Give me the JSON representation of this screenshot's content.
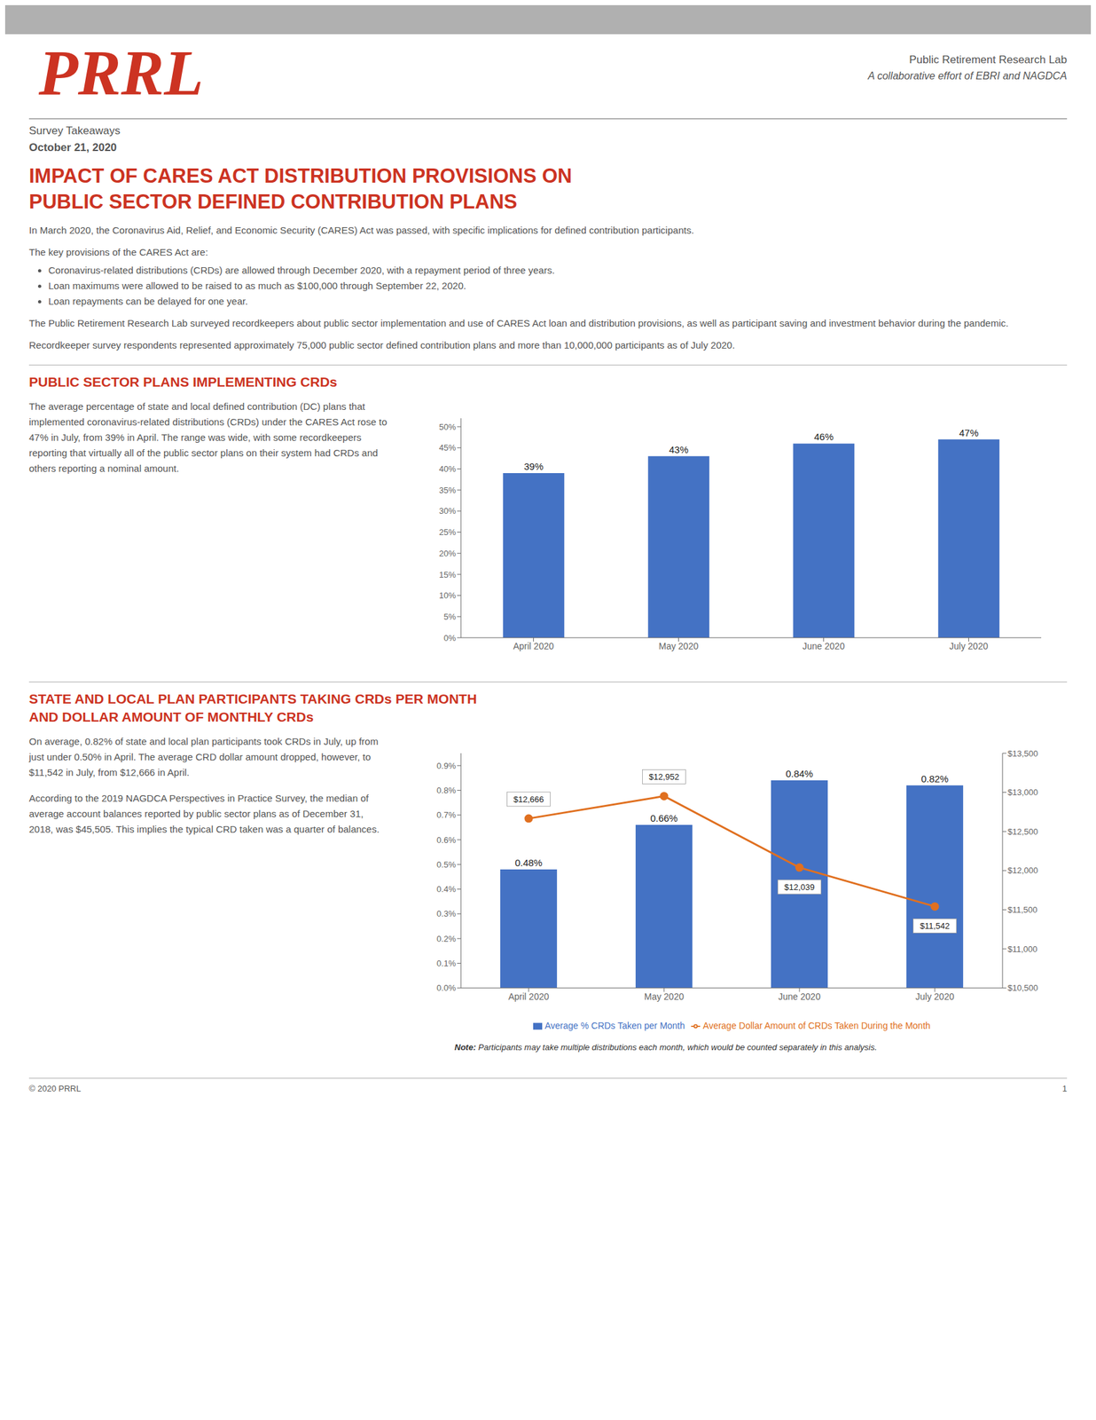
{
  "page": {
    "colors": {
      "top_bar": "#b0b0b0",
      "logo": "#cc3322",
      "title": "#cc3322",
      "section_title": "#cc3322",
      "body": "#555555"
    },
    "logo": "PRRL",
    "header_right": [
      "Public Retirement Research Lab",
      "A collaborative effort of EBRI and NAGDCA"
    ],
    "survey_label": "Survey Takeaways",
    "date_label": "October 21, 2020",
    "title": [
      "IMPACT OF CARES ACT DISTRIBUTION PROVISIONS ON",
      "PUBLIC SECTOR DEFINED CONTRIBUTION PLANS"
    ],
    "para1": "In March 2020, the Coronavirus Aid, Relief, and Economic Security (CARES) Act was passed, with specific implications for defined contribution participants.",
    "para2_intro": "The key provisions of the CARES Act are:",
    "bullets": [
      "Coronavirus-related distributions (CRDs) are allowed through December 2020, with a repayment period of three years.",
      "Loan maximums were allowed to be raised to as much as $100,000 through September 22, 2020.",
      "Loan repayments can be delayed for one year."
    ],
    "para3": "The Public Retirement Research Lab surveyed recordkeepers about public sector implementation and use of CARES Act loan and distribution provisions, as well as participant saving and investment behavior during the pandemic.",
    "para4": "Recordkeeper survey respondents represented approximately 75,000 public sector defined contribution plans and more than 10,000,000 participants as of July 2020.",
    "footer_text": "© 2020 PRRL",
    "footer_page": "1"
  },
  "chart_data": [
    {
      "type": "bar",
      "title": [
        "PUBLIC SECTOR PLANS IMPLEMENTING CRDs"
      ],
      "annotations": [
        "The average percentage of state and local defined contribution (DC) plans that implemented coronavirus-related distributions (CRDs) under the CARES Act rose to 47% in July, from 39% in April. The range was wide, with some recordkeepers reporting that virtually all of the public sector plans on their system had CRDs and others reporting a nominal amount."
      ],
      "categories": [
        "April 2020",
        "May 2020",
        "June 2020",
        "July 2020"
      ],
      "values": [
        39,
        43,
        46,
        47
      ],
      "value_labels": [
        "39%",
        "43%",
        "46%",
        "47%"
      ],
      "color": "#4472c4",
      "data_labels": true,
      "grid": false,
      "ylim": [
        0,
        52
      ],
      "yticks": [
        {
          "value": 0,
          "label": "0%"
        },
        {
          "value": 5,
          "label": "5%"
        },
        {
          "value": 10,
          "label": "10%"
        },
        {
          "value": 15,
          "label": "15%"
        },
        {
          "value": 20,
          "label": "20%"
        },
        {
          "value": 25,
          "label": "25%"
        },
        {
          "value": 30,
          "label": "30%"
        },
        {
          "value": 35,
          "label": "35%"
        },
        {
          "value": 40,
          "label": "40%"
        },
        {
          "value": 45,
          "label": "45%"
        },
        {
          "value": 50,
          "label": "50%"
        }
      ]
    },
    {
      "type": "bar",
      "title": [
        "STATE AND LOCAL PLAN PARTICIPANTS TAKING CRDs PER MONTH",
        "AND DOLLAR AMOUNT OF MONTHLY CRDs"
      ],
      "annotations": [
        "On average, 0.82% of state and local plan participants took CRDs in July, up from just under 0.50% in April. The average CRD dollar amount dropped, however, to $11,542 in July, from $12,666 in April.",
        "According to the 2019 NAGDCA Perspectives in Practice Survey, the median of average account balances reported by public sector plans as of  December 31, 2018, was $45,505. This implies the typical CRD taken was a quarter of balances."
      ],
      "note": [
        "Note:",
        " Participants may take multiple distributions each month, which would be counted separately in this analysis."
      ],
      "categories": [
        "April 2020",
        "May 2020",
        "June 2020",
        "July 2020"
      ],
      "series": [
        {
          "name": "Average % CRDs Taken per Month",
          "type": "bar",
          "color": "#4472c4",
          "values": [
            0.48,
            0.66,
            0.84,
            0.82
          ],
          "value_labels": [
            "0.48%",
            "0.66%",
            "0.84%",
            "0.82%"
          ]
        },
        {
          "name": "Average Dollar Amount of CRDs Taken During the Month",
          "type": "line",
          "axis": "y2",
          "color": "#e07020",
          "marker": "circle",
          "values": [
            12666,
            12952,
            12039,
            11542
          ],
          "value_labels": [
            "$12,666",
            "$12,952",
            "$12,039",
            "$11,542"
          ]
        }
      ],
      "data_labels": true,
      "grid": false,
      "legend": "bottom",
      "ylim": [
        0,
        0.95
      ],
      "yticks": [
        {
          "value": 0,
          "label": "0.0%"
        },
        {
          "value": 0.1,
          "label": "0.1%"
        },
        {
          "value": 0.2,
          "label": "0.2%"
        },
        {
          "value": 0.3,
          "label": "0.3%"
        },
        {
          "value": 0.4,
          "label": "0.4%"
        },
        {
          "value": 0.5,
          "label": "0.5%"
        },
        {
          "value": 0.6,
          "label": "0.6%"
        },
        {
          "value": 0.7,
          "label": "0.7%"
        },
        {
          "value": 0.8,
          "label": "0.8%"
        },
        {
          "value": 0.9,
          "label": "0.9%"
        }
      ],
      "y2lim": [
        10500,
        13500
      ],
      "y2ticks": [
        {
          "value": 10500,
          "label": "$10,500"
        },
        {
          "value": 11000,
          "label": "$11,000"
        },
        {
          "value": 11500,
          "label": "$11,500"
        },
        {
          "value": 12000,
          "label": "$12,000"
        },
        {
          "value": 12500,
          "label": "$12,500"
        },
        {
          "value": 13000,
          "label": "$13,000"
        },
        {
          "value": 13500,
          "label": "$13,500"
        }
      ]
    }
  ]
}
